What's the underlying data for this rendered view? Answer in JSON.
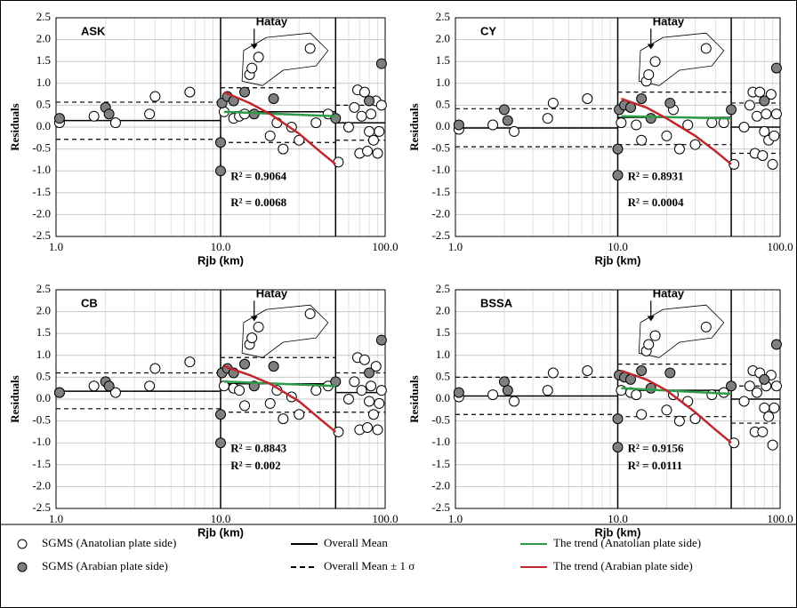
{
  "chart_data": [
    {
      "type": "scatter",
      "title": "ASK",
      "x_label": "Rjb (km)",
      "y_label": "Residuals",
      "annotation": "Hatay",
      "log_x": true,
      "grid": true,
      "xlim": [
        1,
        100
      ],
      "ylim": [
        -2.5,
        2.5
      ],
      "xticks": [
        {
          "value": 1,
          "label": "1.0"
        },
        {
          "value": 10,
          "label": "10.0"
        },
        {
          "value": 100,
          "label": "100.0"
        }
      ],
      "xminor": [
        2,
        3,
        4,
        5,
        6,
        7,
        8,
        9,
        20,
        30,
        40,
        50,
        60,
        70,
        80,
        90
      ],
      "yticks": [
        -2.5,
        {
          "value": -2,
          "label": "-2.0"
        },
        -1.5,
        {
          "value": -1,
          "label": "-1.0"
        },
        -0.5,
        {
          "value": 0,
          "label": "0.0"
        },
        0.5,
        {
          "value": 1,
          "label": "1.0"
        },
        1.5,
        {
          "value": 2,
          "label": "2.0"
        },
        2.5
      ],
      "anatolian": {
        "x": [
          1.05,
          1.7,
          2.3,
          3.7,
          4.0,
          6.5,
          10.5,
          12,
          13,
          14,
          15,
          15.5,
          17,
          20,
          22,
          24,
          27,
          30,
          35,
          38,
          45,
          52,
          60,
          65,
          68,
          70,
          72,
          75,
          78,
          80,
          82,
          85,
          88,
          90,
          92,
          95
        ],
        "y": [
          0.1,
          0.25,
          0.1,
          0.3,
          0.7,
          0.8,
          0.35,
          0.2,
          0.25,
          0.3,
          1.2,
          1.35,
          1.6,
          -0.2,
          0.1,
          -0.5,
          0.0,
          -0.3,
          1.8,
          0.1,
          0.3,
          -0.8,
          0.0,
          0.45,
          0.85,
          -0.6,
          0.25,
          0.8,
          -0.55,
          -0.1,
          0.3,
          -0.3,
          0.6,
          -0.6,
          -0.1,
          0.5
        ]
      },
      "arabian": {
        "x": [
          1.05,
          2.0,
          2.1,
          10,
          10,
          10.2,
          11,
          12,
          14,
          16,
          21,
          50,
          80,
          95
        ],
        "y": [
          0.2,
          0.45,
          0.3,
          -1.0,
          -0.35,
          0.55,
          0.7,
          0.6,
          0.8,
          0.3,
          0.65,
          0.2,
          0.6,
          1.45
        ]
      },
      "segments": [
        {
          "xrange": [
            1,
            10
          ],
          "mean": 0.15,
          "upper": 0.57,
          "lower": -0.28
        },
        {
          "xrange": [
            10,
            50
          ],
          "mean": 0.35,
          "upper": 0.9,
          "lower": -0.35
        },
        {
          "xrange": [
            50,
            100
          ],
          "mean": 0.1,
          "upper": 0.5,
          "lower": -0.3
        }
      ],
      "trend_anatolian": {
        "x": [
          10.5,
          50
        ],
        "y": [
          0.35,
          0.25
        ]
      },
      "trend_arabian": {
        "x": [
          10.5,
          15,
          20,
          30,
          40,
          50
        ],
        "y": [
          0.8,
          0.55,
          0.3,
          -0.15,
          -0.55,
          -0.85
        ]
      },
      "r2_arabian": "R² = 0.9064",
      "r2_anatolian": "R² = 0.0068"
    },
    {
      "type": "scatter",
      "title": "CY",
      "x_label": "Rjb (km)",
      "y_label": "Residuals",
      "annotation": "Hatay",
      "log_x": true,
      "grid": true,
      "xlim": [
        1,
        100
      ],
      "ylim": [
        -2.5,
        2.5
      ],
      "xticks": [
        {
          "value": 1,
          "label": "1.0"
        },
        {
          "value": 10,
          "label": "10.0"
        },
        {
          "value": 100,
          "label": "100.0"
        }
      ],
      "xminor": [
        2,
        3,
        4,
        5,
        6,
        7,
        8,
        9,
        20,
        30,
        40,
        50,
        60,
        70,
        80,
        90
      ],
      "yticks": [
        -2.5,
        {
          "value": -2,
          "label": "-2.0"
        },
        -1.5,
        {
          "value": -1,
          "label": "-1.0"
        },
        -0.5,
        {
          "value": 0,
          "label": "0.0"
        },
        0.5,
        {
          "value": 1,
          "label": "1.0"
        },
        1.5,
        {
          "value": 2,
          "label": "2.0"
        },
        2.5
      ],
      "anatolian": {
        "x": [
          1.05,
          1.7,
          2.3,
          3.7,
          4.0,
          6.5,
          10.5,
          12,
          13,
          14,
          15,
          15.5,
          17,
          20,
          22,
          24,
          27,
          30,
          35,
          38,
          45,
          52,
          60,
          65,
          68,
          70,
          72,
          75,
          78,
          80,
          82,
          85,
          88,
          90,
          92,
          95
        ],
        "y": [
          -0.05,
          0.05,
          -0.1,
          0.2,
          0.55,
          0.65,
          0.1,
          0.45,
          0.05,
          -0.3,
          1.05,
          1.2,
          1.5,
          -0.2,
          0.4,
          -0.5,
          0.05,
          -0.4,
          1.8,
          0.1,
          0.1,
          -0.85,
          0.0,
          0.5,
          0.8,
          -0.6,
          0.25,
          0.8,
          -0.65,
          -0.1,
          0.3,
          -0.3,
          0.75,
          -0.85,
          -0.2,
          0.3
        ]
      },
      "arabian": {
        "x": [
          1.05,
          2.0,
          2.1,
          10,
          10,
          10.2,
          11,
          12,
          14,
          16,
          21,
          50,
          80,
          95
        ],
        "y": [
          0.05,
          0.4,
          0.15,
          -1.1,
          -0.5,
          0.4,
          0.5,
          0.45,
          0.65,
          0.2,
          0.55,
          0.4,
          0.6,
          1.35
        ]
      },
      "segments": [
        {
          "xrange": [
            1,
            10
          ],
          "mean": -0.02,
          "upper": 0.42,
          "lower": -0.45
        },
        {
          "xrange": [
            10,
            50
          ],
          "mean": 0.22,
          "upper": 0.8,
          "lower": -0.4
        },
        {
          "xrange": [
            50,
            100
          ],
          "mean": 0.0,
          "upper": 0.55,
          "lower": -0.6
        }
      ],
      "trend_anatolian": {
        "x": [
          10.5,
          50
        ],
        "y": [
          0.25,
          0.2
        ]
      },
      "trend_arabian": {
        "x": [
          10.5,
          15,
          20,
          30,
          40,
          50
        ],
        "y": [
          0.65,
          0.45,
          0.2,
          -0.2,
          -0.55,
          -0.85
        ]
      },
      "r2_arabian": "R² = 0.8931",
      "r2_anatolian": "R² = 0.0004"
    },
    {
      "type": "scatter",
      "title": "CB",
      "x_label": "Rjb (km)",
      "y_label": "Residuals",
      "annotation": "Hatay",
      "log_x": true,
      "grid": true,
      "xlim": [
        1,
        100
      ],
      "ylim": [
        -2.5,
        2.5
      ],
      "xticks": [
        {
          "value": 1,
          "label": "1.0"
        },
        {
          "value": 10,
          "label": "10.0"
        },
        {
          "value": 100,
          "label": "100.0"
        }
      ],
      "xminor": [
        2,
        3,
        4,
        5,
        6,
        7,
        8,
        9,
        20,
        30,
        40,
        50,
        60,
        70,
        80,
        90
      ],
      "yticks": [
        -2.5,
        {
          "value": -2,
          "label": "-2.0"
        },
        -1.5,
        {
          "value": -1,
          "label": "-1.0"
        },
        -0.5,
        {
          "value": 0,
          "label": "0.0"
        },
        0.5,
        {
          "value": 1,
          "label": "1.0"
        },
        1.5,
        {
          "value": 2,
          "label": "2.0"
        },
        2.5
      ],
      "anatolian": {
        "x": [
          1.05,
          1.7,
          2.3,
          3.7,
          4.0,
          6.5,
          10.5,
          12,
          13,
          14,
          15,
          15.5,
          17,
          20,
          22,
          24,
          27,
          30,
          35,
          38,
          45,
          52,
          60,
          65,
          68,
          70,
          72,
          75,
          78,
          80,
          82,
          85,
          88,
          90,
          92,
          95
        ],
        "y": [
          0.15,
          0.3,
          0.15,
          0.3,
          0.7,
          0.85,
          0.3,
          0.25,
          0.2,
          -0.15,
          1.25,
          1.4,
          1.65,
          -0.1,
          0.2,
          -0.45,
          0.05,
          -0.35,
          1.95,
          0.2,
          0.3,
          -0.75,
          0.0,
          0.4,
          0.95,
          -0.7,
          0.2,
          0.9,
          -0.65,
          -0.05,
          0.3,
          -0.35,
          0.75,
          -0.7,
          -0.1,
          0.2
        ]
      },
      "arabian": {
        "x": [
          1.05,
          2.0,
          2.1,
          10,
          10,
          10.2,
          11,
          12,
          14,
          16,
          21,
          50,
          80,
          95
        ],
        "y": [
          0.15,
          0.4,
          0.3,
          -1.0,
          -0.35,
          0.6,
          0.7,
          0.6,
          0.8,
          0.3,
          0.75,
          0.4,
          0.6,
          1.35
        ]
      },
      "segments": [
        {
          "xrange": [
            1,
            10
          ],
          "mean": 0.18,
          "upper": 0.6,
          "lower": -0.22
        },
        {
          "xrange": [
            10,
            50
          ],
          "mean": 0.35,
          "upper": 0.95,
          "lower": -0.3
        },
        {
          "xrange": [
            50,
            100
          ],
          "mean": 0.15,
          "upper": 0.6,
          "lower": -0.3
        }
      ],
      "trend_anatolian": {
        "x": [
          10.5,
          50
        ],
        "y": [
          0.4,
          0.3
        ]
      },
      "trend_arabian": {
        "x": [
          10.5,
          15,
          20,
          30,
          40,
          50
        ],
        "y": [
          0.75,
          0.55,
          0.35,
          -0.05,
          -0.45,
          -0.75
        ]
      },
      "r2_arabian": "R² = 0.8843",
      "r2_anatolian": "R² = 0.002"
    },
    {
      "type": "scatter",
      "title": "BSSA",
      "x_label": "Rjb (km)",
      "y_label": "Residuals",
      "annotation": "Hatay",
      "log_x": true,
      "grid": true,
      "xlim": [
        1,
        100
      ],
      "ylim": [
        -2.5,
        2.5
      ],
      "xticks": [
        {
          "value": 1,
          "label": "1.0"
        },
        {
          "value": 10,
          "label": "10.0"
        },
        {
          "value": 100,
          "label": "100.0"
        }
      ],
      "xminor": [
        2,
        3,
        4,
        5,
        6,
        7,
        8,
        9,
        20,
        30,
        40,
        50,
        60,
        70,
        80,
        90
      ],
      "yticks": [
        -2.5,
        {
          "value": -2,
          "label": "-2.0"
        },
        -1.5,
        {
          "value": -1,
          "label": "-1.0"
        },
        -0.5,
        {
          "value": 0,
          "label": "0.0"
        },
        0.5,
        {
          "value": 1,
          "label": "1.0"
        },
        1.5,
        {
          "value": 2,
          "label": "2.0"
        },
        2.5
      ],
      "anatolian": {
        "x": [
          1.05,
          1.7,
          2.3,
          3.7,
          4.0,
          6.5,
          10.5,
          12,
          13,
          14,
          15,
          15.5,
          17,
          20,
          22,
          24,
          27,
          30,
          35,
          38,
          45,
          52,
          60,
          65,
          68,
          70,
          72,
          75,
          78,
          80,
          82,
          85,
          88,
          90,
          92,
          95
        ],
        "y": [
          0.05,
          0.1,
          -0.05,
          0.2,
          0.6,
          0.65,
          0.2,
          0.15,
          0.1,
          -0.35,
          1.1,
          1.25,
          1.45,
          -0.25,
          0.1,
          -0.5,
          -0.05,
          -0.45,
          1.65,
          0.1,
          0.15,
          -1.0,
          -0.05,
          0.3,
          0.65,
          -0.75,
          0.15,
          0.6,
          -0.75,
          -0.2,
          0.3,
          -0.4,
          0.55,
          -1.05,
          -0.2,
          0.3
        ]
      },
      "arabian": {
        "x": [
          1.05,
          2.0,
          2.1,
          10,
          10,
          10.2,
          11,
          12,
          14,
          16,
          21,
          50,
          80,
          95
        ],
        "y": [
          0.15,
          0.4,
          0.2,
          -1.1,
          -0.45,
          0.55,
          0.5,
          0.45,
          0.65,
          0.25,
          0.6,
          0.3,
          0.45,
          1.25
        ]
      },
      "segments": [
        {
          "xrange": [
            1,
            10
          ],
          "mean": 0.07,
          "upper": 0.5,
          "lower": -0.35
        },
        {
          "xrange": [
            10,
            50
          ],
          "mean": 0.2,
          "upper": 0.8,
          "lower": -0.4
        },
        {
          "xrange": [
            50,
            100
          ],
          "mean": 0.0,
          "upper": 0.3,
          "lower": -0.55
        }
      ],
      "trend_anatolian": {
        "x": [
          10.5,
          50
        ],
        "y": [
          0.25,
          0.12
        ]
      },
      "trend_arabian": {
        "x": [
          10.5,
          15,
          20,
          30,
          40,
          50
        ],
        "y": [
          0.65,
          0.45,
          0.2,
          -0.3,
          -0.7,
          -1.0
        ]
      },
      "r2_arabian": "R² = 0.9156",
      "r2_anatolian": "R² = 0.0111"
    }
  ],
  "legend": [
    {
      "label": "SGMS (Anatolian plate side)",
      "symbol": "open-circle",
      "color": "#ffffff"
    },
    {
      "label": "SGMS (Arabian plate side)",
      "symbol": "filled-circle",
      "color": "#7f7f7f"
    },
    {
      "label": "Overall Mean",
      "symbol": "solid",
      "color": "#000000"
    },
    {
      "label": "Overall Mean ± 1 σ",
      "symbol": "dashed",
      "color": "#000000"
    },
    {
      "label": "The trend (Anatolian plate side)",
      "symbol": "solid",
      "color": "#2e9a4a"
    },
    {
      "label": "The trend (Arabian plate side)",
      "symbol": "solid",
      "color": "#c0282c"
    }
  ]
}
